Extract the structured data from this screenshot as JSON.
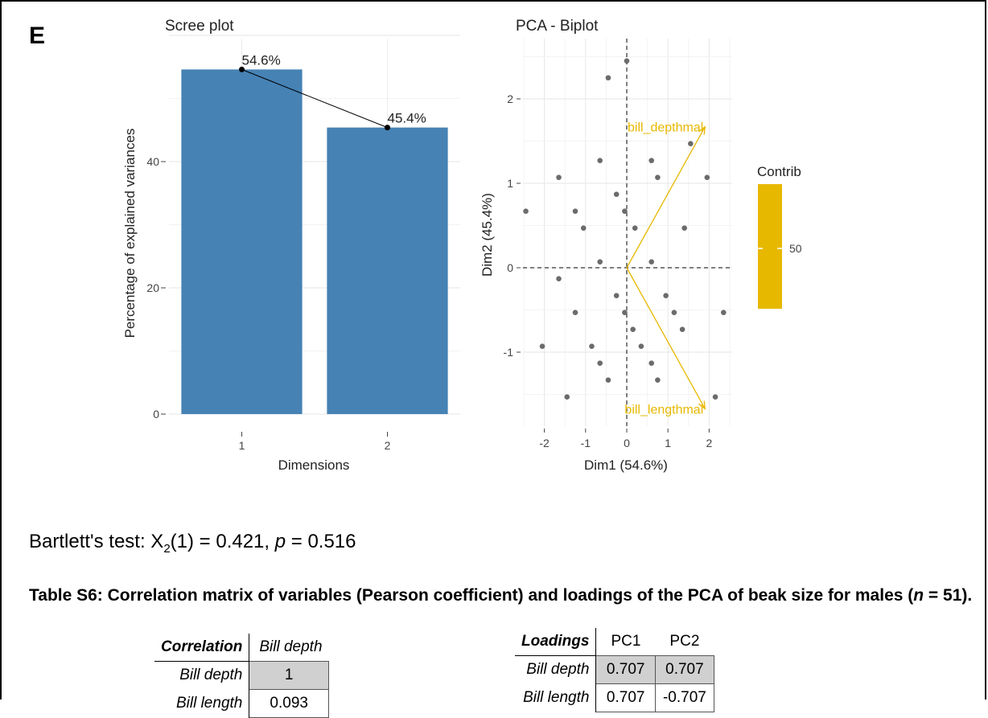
{
  "panel_label": "E",
  "chart_data": [
    {
      "type": "bar",
      "title": "Scree plot",
      "xlabel": "Dimensions",
      "ylabel": "Percentage of explained variances",
      "categories": [
        "1",
        "2"
      ],
      "values": [
        54.6,
        45.4
      ],
      "data_labels": [
        "54.6%",
        "45.4%"
      ],
      "ylim": [
        0,
        60
      ],
      "yticks": [
        0,
        20,
        40
      ],
      "bar_color": "#4682B4",
      "line_overlay": true,
      "grid": true
    },
    {
      "type": "scatter",
      "title": "PCA - Biplot",
      "xlabel": "Dim1 (54.6%)",
      "ylabel": "Dim2 (45.4%)",
      "xlim": [
        -2.5,
        2.5
      ],
      "ylim": [
        -1.8,
        2.7
      ],
      "xticks": [
        -2,
        -1,
        0,
        1,
        2
      ],
      "yticks": [
        -1,
        0,
        1,
        2
      ],
      "grid": true,
      "point_color": "#6b6b6b",
      "points": [
        [
          0.0,
          2.45
        ],
        [
          -0.45,
          2.25
        ],
        [
          -0.65,
          1.27
        ],
        [
          0.6,
          1.27
        ],
        [
          -1.65,
          1.07
        ],
        [
          0.75,
          1.07
        ],
        [
          1.95,
          1.07
        ],
        [
          1.55,
          1.47
        ],
        [
          -0.25,
          0.87
        ],
        [
          -2.45,
          0.67
        ],
        [
          -1.25,
          0.67
        ],
        [
          -0.05,
          0.67
        ],
        [
          -1.05,
          0.47
        ],
        [
          0.2,
          0.47
        ],
        [
          1.4,
          0.47
        ],
        [
          -0.65,
          0.07
        ],
        [
          0.6,
          0.07
        ],
        [
          -1.65,
          -0.13
        ],
        [
          -0.25,
          -0.33
        ],
        [
          0.95,
          -0.33
        ],
        [
          -1.25,
          -0.53
        ],
        [
          -0.05,
          -0.53
        ],
        [
          1.15,
          -0.53
        ],
        [
          2.35,
          -0.53
        ],
        [
          0.15,
          -0.73
        ],
        [
          1.35,
          -0.73
        ],
        [
          -2.05,
          -0.93
        ],
        [
          -0.85,
          -0.93
        ],
        [
          0.35,
          -0.93
        ],
        [
          -0.65,
          -1.13
        ],
        [
          0.6,
          -1.13
        ],
        [
          -0.45,
          -1.33
        ],
        [
          0.75,
          -1.33
        ],
        [
          -1.45,
          -1.53
        ],
        [
          2.15,
          -1.53
        ]
      ],
      "arrows": [
        {
          "label": "bill_depthmal",
          "x": 1.9,
          "y": 1.67
        },
        {
          "label": "bill_lengthmal",
          "x": 1.9,
          "y": -1.67
        }
      ],
      "arrow_color": "#E7B800",
      "legend": {
        "title": "Contrib",
        "tick": "50",
        "position": "right"
      }
    }
  ],
  "bartlett": {
    "prefix": "Bartlett's test: X",
    "subscript": "2",
    "middle": "(1) = 0.421, ",
    "p_symbol": "p",
    "suffix": " = 0.516"
  },
  "caption": {
    "text_a": "Table S6: Correlation matrix of variables (Pearson coefficient) and loadings of the PCA of beak size for males (",
    "n_symbol": "n",
    "text_b": " = 51)."
  },
  "correlation_table": {
    "header": [
      "Correlation",
      "Bill depth"
    ],
    "rows": [
      {
        "label": "Bill depth",
        "value": "1"
      },
      {
        "label": "Bill length",
        "value": "0.093"
      }
    ]
  },
  "loadings_table": {
    "header": [
      "Loadings",
      "PC1",
      "PC2"
    ],
    "rows": [
      {
        "label": "Bill depth",
        "pc1": "0.707",
        "pc2": "0.707"
      },
      {
        "label": "Bill length",
        "pc1": "0.707",
        "pc2": "-0.707"
      }
    ]
  }
}
